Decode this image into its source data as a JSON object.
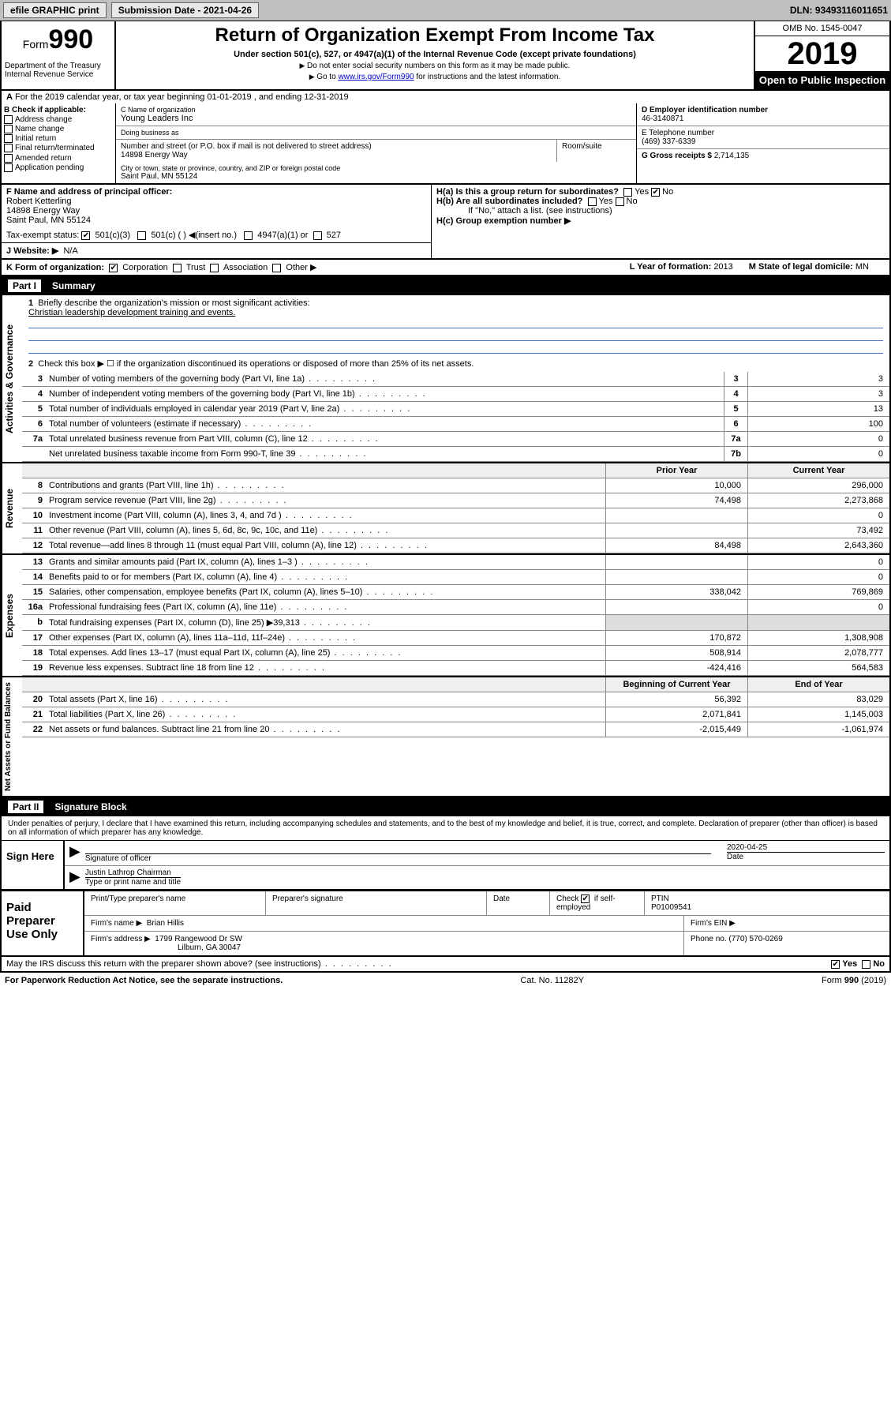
{
  "topbar": {
    "efile": "efile GRAPHIC print",
    "submission_label": "Submission Date - 2021-04-26",
    "dln": "DLN: 93493116011651"
  },
  "header": {
    "form_label": "Form",
    "form_number": "990",
    "title": "Return of Organization Exempt From Income Tax",
    "subtitle": "Under section 501(c), 527, or 4947(a)(1) of the Internal Revenue Code (except private foundations)",
    "note1": "Do not enter social security numbers on this form as it may be made public.",
    "note2_pre": "Go to ",
    "note2_link": "www.irs.gov/Form990",
    "note2_post": " for instructions and the latest information.",
    "dept": "Department of the Treasury\nInternal Revenue Service",
    "omb": "OMB No. 1545-0047",
    "year": "2019",
    "open_public": "Open to Public Inspection"
  },
  "lineA": {
    "text": "For the 2019 calendar year, or tax year beginning 01-01-2019   , and ending 12-31-2019"
  },
  "sectionB": {
    "label": "B Check if applicable:",
    "opts": [
      "Address change",
      "Name change",
      "Initial return",
      "Final return/terminated",
      "Amended return",
      "Application pending"
    ]
  },
  "sectionC": {
    "name_label": "C Name of organization",
    "name": "Young Leaders Inc",
    "dba_label": "Doing business as",
    "dba": "",
    "street_label": "Number and street (or P.O. box if mail is not delivered to street address)",
    "street": "14898 Energy Way",
    "room_label": "Room/suite",
    "room": "",
    "city_label": "City or town, state or province, country, and ZIP or foreign postal code",
    "city": "Saint Paul, MN  55124"
  },
  "sectionD": {
    "label": "D Employer identification number",
    "value": "46-3140871"
  },
  "sectionE": {
    "label": "E Telephone number",
    "value": "(469) 337-6339"
  },
  "sectionG": {
    "label": "G Gross receipts $",
    "value": "2,714,135"
  },
  "sectionF": {
    "label": "F  Name and address of principal officer:",
    "name": "Robert Ketterling",
    "addr1": "14898 Energy Way",
    "addr2": "Saint Paul, MN  55124"
  },
  "sectionH": {
    "a_label": "H(a)  Is this a group return for subordinates?",
    "a_yes": "Yes",
    "a_no": "No",
    "a_checked": "No",
    "b_label": "H(b)  Are all subordinates included?",
    "b_yes": "Yes",
    "b_no": "No",
    "b_note": "If \"No,\" attach a list. (see instructions)",
    "c_label": "H(c)  Group exemption number ▶",
    "c_value": ""
  },
  "taxStatus": {
    "label": "Tax-exempt status:",
    "o1": "501(c)(3)",
    "o2": "501(c) (   ) ◀(insert no.)",
    "o3": "4947(a)(1) or",
    "o4": "527",
    "checked": "501(c)(3)"
  },
  "sectionJ": {
    "label": "J    Website: ▶",
    "value": "N/A"
  },
  "sectionK": {
    "label": "K Form of organization:",
    "opts": [
      "Corporation",
      "Trust",
      "Association",
      "Other ▶"
    ],
    "checked": "Corporation"
  },
  "sectionL": {
    "label": "L Year of formation:",
    "value": "2013"
  },
  "sectionM": {
    "label": "M State of legal domicile:",
    "value": "MN"
  },
  "partI": {
    "title": "Part I",
    "subtitle": "Summary"
  },
  "summary": {
    "line1_label": "Briefly describe the organization's mission or most significant activities:",
    "line1_text": "Christian leadership development training and events.",
    "line2_label": "Check this box ▶ ☐  if the organization discontinued its operations or disposed of more than 25% of its net assets.",
    "rows": [
      {
        "n": "3",
        "d": "Number of voting members of the governing body (Part VI, line 1a)",
        "box": "3",
        "v": "3"
      },
      {
        "n": "4",
        "d": "Number of independent voting members of the governing body (Part VI, line 1b)",
        "box": "4",
        "v": "3"
      },
      {
        "n": "5",
        "d": "Total number of individuals employed in calendar year 2019 (Part V, line 2a)",
        "box": "5",
        "v": "13"
      },
      {
        "n": "6",
        "d": "Total number of volunteers (estimate if necessary)",
        "box": "6",
        "v": "100"
      },
      {
        "n": "7a",
        "d": "Total unrelated business revenue from Part VIII, column (C), line 12",
        "box": "7a",
        "v": "0"
      },
      {
        "n": "",
        "d": "Net unrelated business taxable income from Form 990-T, line 39",
        "box": "7b",
        "v": "0"
      }
    ],
    "hdr_prior": "Prior Year",
    "hdr_current": "Current Year",
    "revenue": [
      {
        "n": "8",
        "d": "Contributions and grants (Part VIII, line 1h)",
        "p": "10,000",
        "c": "296,000"
      },
      {
        "n": "9",
        "d": "Program service revenue (Part VIII, line 2g)",
        "p": "74,498",
        "c": "2,273,868"
      },
      {
        "n": "10",
        "d": "Investment income (Part VIII, column (A), lines 3, 4, and 7d )",
        "p": "",
        "c": "0"
      },
      {
        "n": "11",
        "d": "Other revenue (Part VIII, column (A), lines 5, 6d, 8c, 9c, 10c, and 11e)",
        "p": "",
        "c": "73,492"
      },
      {
        "n": "12",
        "d": "Total revenue—add lines 8 through 11 (must equal Part VIII, column (A), line 12)",
        "p": "84,498",
        "c": "2,643,360"
      }
    ],
    "expenses": [
      {
        "n": "13",
        "d": "Grants and similar amounts paid (Part IX, column (A), lines 1–3 )",
        "p": "",
        "c": "0"
      },
      {
        "n": "14",
        "d": "Benefits paid to or for members (Part IX, column (A), line 4)",
        "p": "",
        "c": "0"
      },
      {
        "n": "15",
        "d": "Salaries, other compensation, employee benefits (Part IX, column (A), lines 5–10)",
        "p": "338,042",
        "c": "769,869"
      },
      {
        "n": "16a",
        "d": "Professional fundraising fees (Part IX, column (A), line 11e)",
        "p": "",
        "c": "0"
      },
      {
        "n": "b",
        "d": "Total fundraising expenses (Part IX, column (D), line 25) ▶39,313",
        "p": "—",
        "c": "—"
      },
      {
        "n": "17",
        "d": "Other expenses (Part IX, column (A), lines 11a–11d, 11f–24e)",
        "p": "170,872",
        "c": "1,308,908"
      },
      {
        "n": "18",
        "d": "Total expenses. Add lines 13–17 (must equal Part IX, column (A), line 25)",
        "p": "508,914",
        "c": "2,078,777"
      },
      {
        "n": "19",
        "d": "Revenue less expenses. Subtract line 18 from line 12",
        "p": "-424,416",
        "c": "564,583"
      }
    ],
    "hdr_begin": "Beginning of Current Year",
    "hdr_end": "End of Year",
    "netassets": [
      {
        "n": "20",
        "d": "Total assets (Part X, line 16)",
        "p": "56,392",
        "c": "83,029"
      },
      {
        "n": "21",
        "d": "Total liabilities (Part X, line 26)",
        "p": "2,071,841",
        "c": "1,145,003"
      },
      {
        "n": "22",
        "d": "Net assets or fund balances. Subtract line 21 from line 20",
        "p": "-2,015,449",
        "c": "-1,061,974"
      }
    ]
  },
  "vtabs": {
    "gov": "Activities & Governance",
    "rev": "Revenue",
    "exp": "Expenses",
    "na": "Net Assets or Fund Balances"
  },
  "partII": {
    "title": "Part II",
    "subtitle": "Signature Block"
  },
  "perjury": "Under penalties of perjury, I declare that I have examined this return, including accompanying schedules and statements, and to the best of my knowledge and belief, it is true, correct, and complete. Declaration of preparer (other than officer) is based on all information of which preparer has any knowledge.",
  "sign": {
    "label": "Sign Here",
    "sig_label": "Signature of officer",
    "date_label": "Date",
    "date": "2020-04-25",
    "name": "Justin Lathrop  Chairman",
    "name_label": "Type or print name and title"
  },
  "paid": {
    "label": "Paid Preparer Use Only",
    "h1": "Print/Type preparer's name",
    "h2": "Preparer's signature",
    "h3": "Date",
    "h4_pre": "Check",
    "h4": "if self-employed",
    "h4_checked": true,
    "h5": "PTIN",
    "ptin": "P01009541",
    "firm_label": "Firm's name   ▶",
    "firm": "Brian Hillis",
    "ein_label": "Firm's EIN ▶",
    "ein": "",
    "addr_label": "Firm's address ▶",
    "addr1": "1799 Rangewood Dr SW",
    "addr2": "Lilburn, GA  30047",
    "phone_label": "Phone no.",
    "phone": "(770) 570-0269"
  },
  "discuss": {
    "text": "May the IRS discuss this return with the preparer shown above? (see instructions)",
    "yes": "Yes",
    "no": "No",
    "checked": "Yes"
  },
  "footer": {
    "left": "For Paperwork Reduction Act Notice, see the separate instructions.",
    "mid": "Cat. No. 11282Y",
    "right": "Form 990 (2019)"
  }
}
